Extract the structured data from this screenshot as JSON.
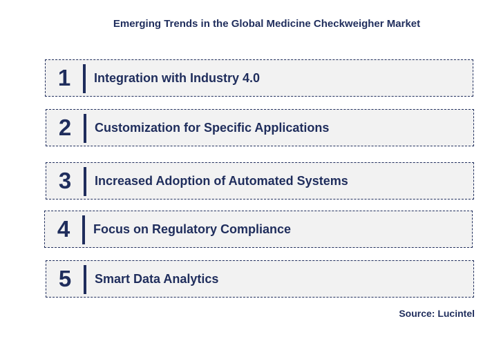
{
  "title": "Emerging Trends in the Global Medicine Checkweigher Market",
  "trends": [
    {
      "number": "1",
      "label": "Integration with Industry 4.0"
    },
    {
      "number": "2",
      "label": "Customization for Specific Applications"
    },
    {
      "number": "3",
      "label": "Increased Adoption of Automated Systems"
    },
    {
      "number": "4",
      "label": "Focus on Regulatory Compliance"
    },
    {
      "number": "5",
      "label": "Smart Data Analytics"
    }
  ],
  "source": "Source: Lucintel",
  "colors": {
    "accent": "#1f2d5c",
    "box_background": "#f2f2f2"
  }
}
